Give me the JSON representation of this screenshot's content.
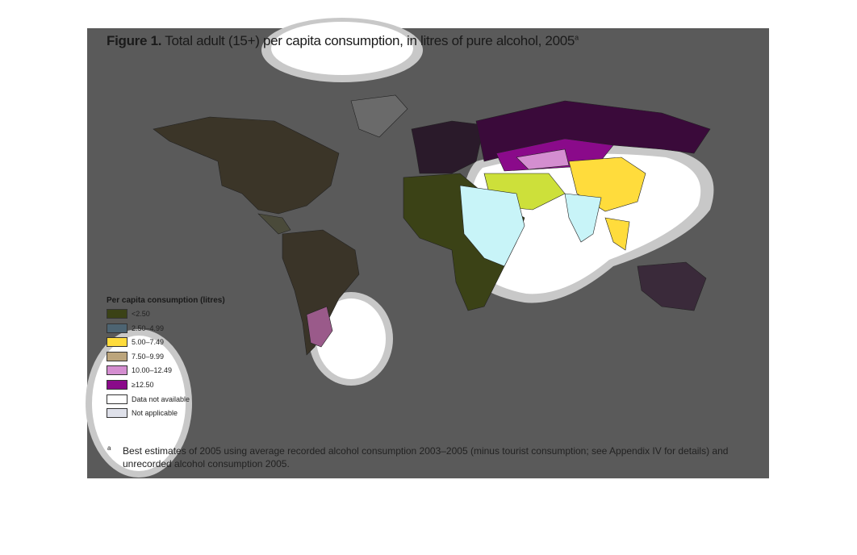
{
  "header": {
    "figure_label": "Figure 1.",
    "title": "Total adult (15+) per capita consumption, in litres of pure alcohol, 2005",
    "title_marker": "a"
  },
  "legend": {
    "title": "Per capita consumption (litres)",
    "items": [
      {
        "label": "<2.50",
        "color": "#3b4216"
      },
      {
        "label": "2.50–4.99",
        "color": "#4d6472"
      },
      {
        "label": "5.00–7.49",
        "color": "#ffdc3c"
      },
      {
        "label": "7.50–9.99",
        "color": "#bca57c"
      },
      {
        "label": "10.00–12.49",
        "color": "#d48ed0"
      },
      {
        "label": "≥12.50",
        "color": "#8a0a8a"
      },
      {
        "label": "Data not available",
        "color": "#ffffff"
      },
      {
        "label": "Not applicable",
        "color": "#dfe1ea"
      }
    ]
  },
  "footnote": {
    "marker": "a",
    "text": "Best estimates of 2005 using average recorded alcohol consumption 2003–2005 (minus tourist consumption; see Appendix IV for details) and unrecorded alcohol consumption 2005."
  }
}
